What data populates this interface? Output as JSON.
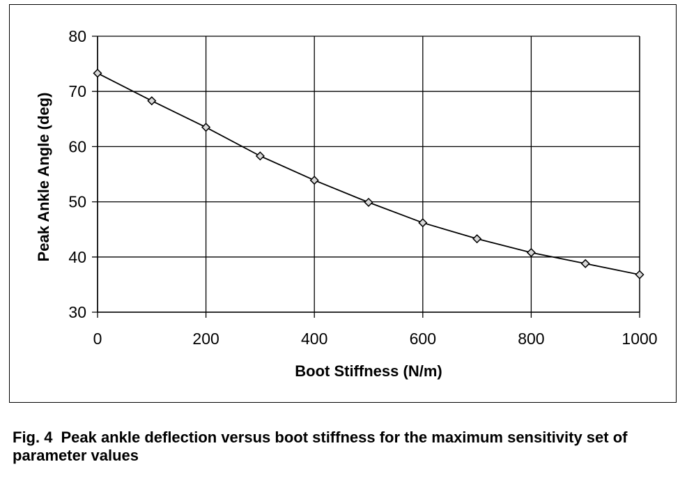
{
  "caption": {
    "figure_number": "Fig. 4",
    "text": "Peak ankle deflection versus boot stiffness for the maximum sensitivity set of parameter values"
  },
  "chart_data": {
    "type": "line",
    "xlabel": "Boot Stiffness (N/m)",
    "ylabel": "Peak Ankle Angle (deg)",
    "xlim": [
      0,
      1000
    ],
    "ylim": [
      30,
      80
    ],
    "x_ticks": [
      0,
      200,
      400,
      600,
      800,
      1000
    ],
    "y_ticks": [
      30,
      40,
      50,
      60,
      70,
      80
    ],
    "grid": true,
    "legend": "none",
    "series": [
      {
        "marker": "diamond",
        "color": "#000000",
        "x": [
          0,
          100,
          200,
          300,
          400,
          500,
          600,
          700,
          800,
          900,
          1000
        ],
        "y": [
          73.3,
          68.3,
          63.5,
          58.3,
          53.9,
          49.9,
          46.2,
          43.3,
          40.8,
          38.8,
          36.8
        ]
      }
    ]
  }
}
